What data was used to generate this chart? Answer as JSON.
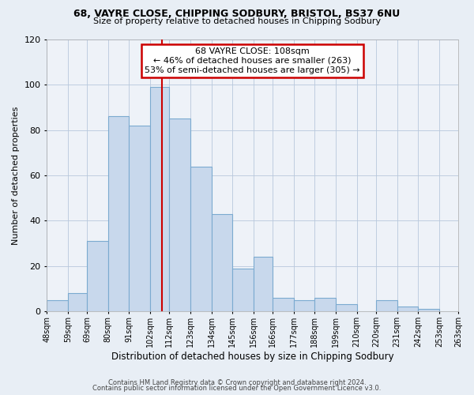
{
  "title1": "68, VAYRE CLOSE, CHIPPING SODBURY, BRISTOL, BS37 6NU",
  "title2": "Size of property relative to detached houses in Chipping Sodbury",
  "xlabel": "Distribution of detached houses by size in Chipping Sodbury",
  "ylabel": "Number of detached properties",
  "bin_labels": [
    "48sqm",
    "59sqm",
    "69sqm",
    "80sqm",
    "91sqm",
    "102sqm",
    "112sqm",
    "123sqm",
    "134sqm",
    "145sqm",
    "156sqm",
    "166sqm",
    "177sqm",
    "188sqm",
    "199sqm",
    "210sqm",
    "220sqm",
    "231sqm",
    "242sqm",
    "253sqm",
    "263sqm"
  ],
  "bin_edges": [
    48,
    59,
    69,
    80,
    91,
    102,
    112,
    123,
    134,
    145,
    156,
    166,
    177,
    188,
    199,
    210,
    220,
    231,
    242,
    253,
    263
  ],
  "values": [
    5,
    8,
    31,
    86,
    82,
    99,
    85,
    64,
    43,
    19,
    24,
    6,
    5,
    6,
    3,
    0,
    5,
    2,
    1,
    0
  ],
  "bar_color": "#c8d8ec",
  "bar_edge_color": "#7baad0",
  "vline_x": 108,
  "vline_color": "#cc0000",
  "annotation_line1": "68 VAYRE CLOSE: 108sqm",
  "annotation_line2": "← 46% of detached houses are smaller (263)",
  "annotation_line3": "53% of semi-detached houses are larger (305) →",
  "annotation_box_color": "#cc0000",
  "ylim": [
    0,
    120
  ],
  "yticks": [
    0,
    20,
    40,
    60,
    80,
    100,
    120
  ],
  "footer1": "Contains HM Land Registry data © Crown copyright and database right 2024.",
  "footer2": "Contains public sector information licensed under the Open Government Licence v3.0.",
  "background_color": "#e8eef5",
  "plot_bg_color": "#eef2f8"
}
